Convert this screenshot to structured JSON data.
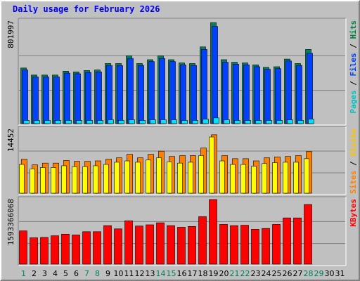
{
  "title": "Daily usage for February 2026",
  "panels": {
    "top": {
      "max_label": "801997",
      "legend": [
        {
          "text": "Pages",
          "color": "#00c0c0"
        },
        {
          "text": " / ",
          "color": "#000000"
        },
        {
          "text": "Files",
          "color": "#0040ff"
        },
        {
          "text": " / ",
          "color": "#000000"
        },
        {
          "text": "Hits",
          "color": "#008040"
        }
      ]
    },
    "mid": {
      "max_label": "14452",
      "legend": [
        {
          "text": "Sites",
          "color": "#ff8000"
        },
        {
          "text": " / ",
          "color": "#000000"
        },
        {
          "text": "Visits",
          "color": "#ffc000"
        }
      ]
    },
    "bot": {
      "max_label": "1593366068",
      "legend": [
        {
          "text": "KBytes",
          "color": "#ff0000"
        }
      ]
    }
  },
  "day_labels": [
    "1",
    "2",
    "3",
    "4",
    "5",
    "6",
    "7",
    "8",
    "9",
    "10",
    "11",
    "12",
    "13",
    "14",
    "15",
    "16",
    "17",
    "18",
    "19",
    "20",
    "21",
    "22",
    "23",
    "24",
    "25",
    "26",
    "27",
    "28",
    "29",
    "30",
    "31"
  ],
  "weekend_days": [
    1,
    7,
    8,
    14,
    15,
    21,
    22,
    28,
    29
  ],
  "colors": {
    "hits": "#00805c",
    "files": "#0040ff",
    "pages": "#00e0ff",
    "sites": "#ff8000",
    "visits": "#ffff00",
    "kbytes": "#ff0000",
    "weekday_label": "#000000",
    "weekend_label": "#00805c"
  },
  "chart_data": [
    {
      "type": "bar",
      "ylim": [
        0,
        801997
      ],
      "x": [
        1,
        2,
        3,
        4,
        5,
        6,
        7,
        8,
        9,
        10,
        11,
        12,
        13,
        14,
        15,
        16,
        17,
        18,
        19,
        20,
        21,
        22,
        23,
        24,
        25,
        26,
        27,
        28
      ],
      "series": [
        {
          "name": "Hits",
          "values": [
            435000,
            380000,
            380000,
            380000,
            410000,
            405000,
            415000,
            420000,
            470000,
            470000,
            530000,
            470000,
            500000,
            530000,
            500000,
            475000,
            470000,
            600000,
            790000,
            500000,
            480000,
            475000,
            460000,
            440000,
            445000,
            505000,
            470000,
            580000
          ]
        },
        {
          "name": "Files",
          "values": [
            420000,
            365000,
            365000,
            365000,
            395000,
            390000,
            400000,
            405000,
            455000,
            455000,
            510000,
            455000,
            485000,
            510000,
            485000,
            460000,
            455000,
            580000,
            760000,
            480000,
            465000,
            460000,
            445000,
            425000,
            430000,
            490000,
            455000,
            550000
          ]
        },
        {
          "name": "Pages",
          "values": [
            25000,
            25000,
            25000,
            25000,
            25000,
            25000,
            25000,
            25000,
            30000,
            25000,
            30000,
            25000,
            30000,
            30000,
            30000,
            25000,
            25000,
            35000,
            45000,
            30000,
            25000,
            25000,
            25000,
            25000,
            25000,
            30000,
            25000,
            35000
          ]
        }
      ]
    },
    {
      "type": "bar",
      "ylim": [
        0,
        14452
      ],
      "x": [
        1,
        2,
        3,
        4,
        5,
        6,
        7,
        8,
        9,
        10,
        11,
        12,
        13,
        14,
        15,
        16,
        17,
        18,
        19,
        20,
        21,
        22,
        23,
        24,
        25,
        26,
        27,
        28
      ],
      "series": [
        {
          "name": "Sites",
          "values": [
            7700,
            6400,
            6800,
            6800,
            7400,
            7200,
            7200,
            7300,
            7700,
            8000,
            8800,
            8000,
            8800,
            9500,
            8300,
            8500,
            8500,
            10200,
            13200,
            8500,
            7800,
            7800,
            7300,
            8000,
            8200,
            8300,
            8500,
            9400
          ]
        },
        {
          "name": "Visits",
          "values": [
            6500,
            5500,
            5800,
            5800,
            6200,
            6000,
            6000,
            6200,
            6500,
            7000,
            7300,
            7000,
            7500,
            8000,
            7100,
            6800,
            7000,
            8500,
            12700,
            7300,
            6500,
            6500,
            6100,
            6700,
            6900,
            7000,
            7000,
            7800
          ]
        }
      ]
    },
    {
      "type": "bar",
      "ylim": [
        0,
        1593366068
      ],
      "x": [
        1,
        2,
        3,
        4,
        5,
        6,
        7,
        8,
        9,
        10,
        11,
        12,
        13,
        14,
        15,
        16,
        17,
        18,
        19,
        20,
        21,
        22,
        23,
        24,
        25,
        26,
        27,
        28
      ],
      "series": [
        {
          "name": "KBytes",
          "values": [
            820000000,
            650000000,
            660000000,
            700000000,
            740000000,
            720000000,
            800000000,
            800000000,
            950000000,
            870000000,
            1070000000,
            940000000,
            970000000,
            1020000000,
            950000000,
            910000000,
            930000000,
            1170000000,
            1593000000,
            980000000,
            950000000,
            960000000,
            860000000,
            880000000,
            980000000,
            1140000000,
            1140000000,
            1470000000
          ]
        }
      ]
    }
  ]
}
